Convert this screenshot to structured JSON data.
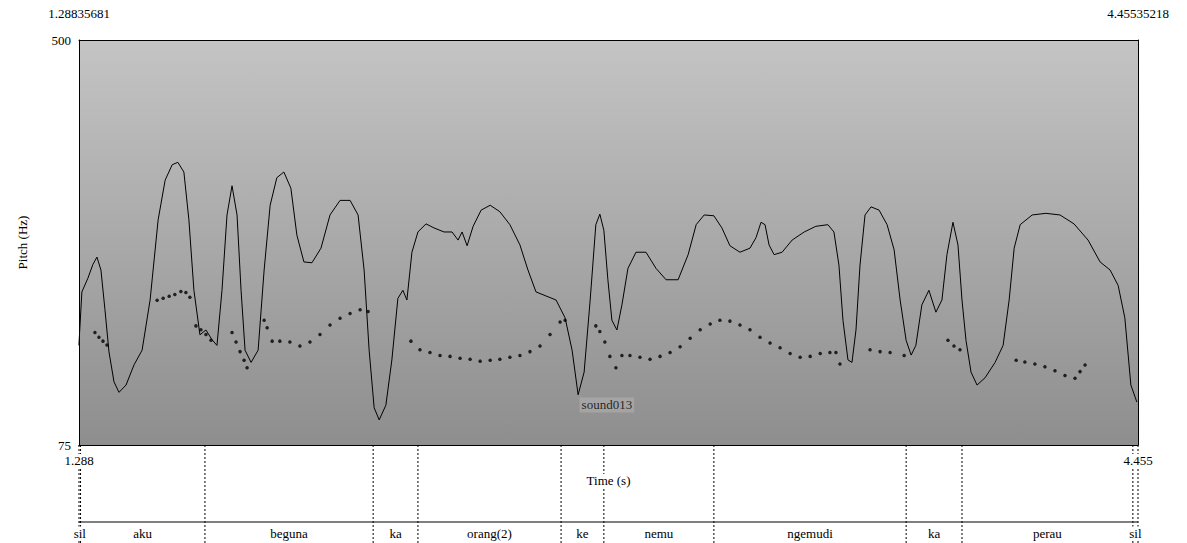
{
  "chart_data": {
    "type": "scatter",
    "xlabel": "Time (s)",
    "ylabel": "Pitch (Hz)",
    "xlim": [
      1.28835681,
      4.45535218
    ],
    "xticks": [
      {
        "value": 1.28835681,
        "label": "1.288"
      },
      {
        "value": 4.45535218,
        "label": "4.455"
      }
    ],
    "x2ticks": [
      1.28835681,
      4.45535218
    ],
    "ylim": [
      75,
      500
    ],
    "yticks": [
      75,
      500
    ],
    "y2lim": [
      50,
      100
    ],
    "y2ticks": [],
    "grid": false,
    "series": [
      {
        "type": "scatter",
        "marker": "circle",
        "color": "#000000",
        "x": [
          1.336,
          1.348,
          1.36,
          1.372,
          1.522,
          1.54,
          1.558,
          1.575,
          1.593,
          1.608,
          1.62,
          1.638,
          1.653,
          1.668,
          1.683,
          1.746,
          1.758,
          1.77,
          1.782,
          1.791,
          1.842,
          1.851,
          1.866,
          1.889,
          1.919,
          1.949,
          1.979,
          2.009,
          2.039,
          2.069,
          2.099,
          2.129,
          2.153,
          2.281,
          2.308,
          2.338,
          2.368,
          2.398,
          2.428,
          2.458,
          2.488,
          2.518,
          2.547,
          2.577,
          2.607,
          2.637,
          2.667,
          2.697,
          2.727,
          2.742,
          2.834,
          2.846,
          2.861,
          2.876,
          2.894,
          2.912,
          2.936,
          2.966,
          2.996,
          3.026,
          3.056,
          3.086,
          3.116,
          3.146,
          3.176,
          3.205,
          3.235,
          3.265,
          3.295,
          3.325,
          3.355,
          3.385,
          3.415,
          3.445,
          3.475,
          3.505,
          3.534,
          3.552,
          3.564,
          3.654,
          3.684,
          3.714,
          3.756,
          3.887,
          3.905,
          3.923,
          4.091,
          4.117,
          4.147,
          4.177,
          4.207,
          4.237,
          4.267,
          4.282,
          4.297
        ],
        "values": [
          193,
          188,
          184,
          180,
          227,
          229,
          231,
          233,
          236,
          235,
          230,
          200,
          196,
          191,
          185,
          193,
          183,
          173,
          164,
          156,
          206,
          198,
          184,
          184,
          183,
          179,
          183,
          191,
          201,
          208,
          213,
          217,
          215,
          184,
          175,
          172,
          169,
          168,
          166,
          165,
          163,
          164,
          165,
          167,
          169,
          173,
          179,
          191,
          204,
          206,
          200,
          194,
          183,
          168,
          156,
          169,
          169,
          167,
          165,
          168,
          172,
          178,
          187,
          196,
          202,
          206,
          205,
          201,
          196,
          188,
          182,
          177,
          171,
          167,
          168,
          171,
          172,
          172,
          160,
          175,
          173,
          172,
          169,
          185,
          179,
          175,
          164,
          162,
          160,
          157,
          153,
          148,
          145,
          152,
          159
        ]
      },
      {
        "type": "line",
        "axis": "y2",
        "color": "#000000",
        "line_style": "solid",
        "x": [
          1.288,
          1.297,
          1.315,
          1.33,
          1.342,
          1.354,
          1.366,
          1.378,
          1.393,
          1.408,
          1.429,
          1.453,
          1.477,
          1.501,
          1.525,
          1.546,
          1.567,
          1.584,
          1.602,
          1.617,
          1.632,
          1.65,
          1.668,
          1.686,
          1.701,
          1.716,
          1.731,
          1.746,
          1.761,
          1.773,
          1.785,
          1.803,
          1.824,
          1.842,
          1.86,
          1.88,
          1.901,
          1.922,
          1.94,
          1.961,
          1.985,
          2.012,
          2.039,
          2.069,
          2.099,
          2.123,
          2.141,
          2.156,
          2.171,
          2.186,
          2.206,
          2.224,
          2.242,
          2.257,
          2.269,
          2.284,
          2.302,
          2.326,
          2.35,
          2.38,
          2.404,
          2.422,
          2.434,
          2.449,
          2.467,
          2.491,
          2.518,
          2.547,
          2.577,
          2.607,
          2.631,
          2.655,
          2.685,
          2.715,
          2.742,
          2.763,
          2.781,
          2.799,
          2.817,
          2.834,
          2.846,
          2.858,
          2.87,
          2.882,
          2.897,
          2.912,
          2.93,
          2.954,
          2.984,
          3.014,
          3.044,
          3.08,
          3.11,
          3.134,
          3.158,
          3.187,
          3.211,
          3.235,
          3.265,
          3.295,
          3.313,
          3.328,
          3.34,
          3.352,
          3.367,
          3.391,
          3.421,
          3.457,
          3.492,
          3.528,
          3.546,
          3.561,
          3.573,
          3.588,
          3.6,
          3.612,
          3.624,
          3.639,
          3.657,
          3.681,
          3.705,
          3.726,
          3.744,
          3.762,
          3.777,
          3.791,
          3.809,
          3.83,
          3.851,
          3.869,
          3.884,
          3.902,
          3.917,
          3.929,
          3.941,
          3.956,
          3.974,
          3.998,
          4.028,
          4.052,
          4.07,
          4.085,
          4.103,
          4.139,
          4.18,
          4.222,
          4.264,
          4.306,
          4.342,
          4.372,
          4.396,
          4.416,
          4.434,
          4.452
        ],
        "values": [
          62.3,
          68.9,
          70.6,
          72.3,
          73.2,
          71.6,
          66.7,
          61.5,
          57.8,
          56.5,
          57.4,
          59.9,
          61.7,
          67.9,
          77.8,
          82.7,
          84.6,
          84.9,
          83.7,
          77.8,
          69.1,
          63.6,
          64.2,
          63.0,
          62.3,
          69.1,
          78.4,
          82.0,
          78.4,
          69.1,
          61.7,
          60.2,
          61.7,
          71.6,
          79.6,
          83.0,
          83.7,
          81.7,
          75.9,
          72.6,
          72.5,
          74.3,
          78.4,
          80.2,
          80.2,
          78.4,
          71.6,
          61.7,
          54.6,
          53.1,
          54.9,
          60.5,
          68.1,
          69.1,
          67.9,
          73.8,
          76.3,
          77.3,
          76.8,
          76.3,
          76.3,
          75.3,
          76.3,
          74.6,
          77.0,
          79.0,
          79.6,
          78.8,
          77.2,
          74.7,
          71.6,
          68.9,
          68.4,
          67.9,
          65.7,
          61.7,
          56.2,
          59.0,
          67.9,
          77.2,
          78.5,
          76.5,
          70.4,
          65.4,
          64.2,
          67.3,
          71.8,
          73.8,
          73.8,
          71.8,
          70.4,
          70.4,
          73.5,
          77.2,
          78.4,
          78.3,
          76.8,
          74.6,
          73.8,
          74.3,
          75.6,
          77.5,
          77.2,
          74.7,
          73.5,
          73.8,
          75.3,
          76.3,
          77.0,
          77.2,
          76.3,
          72.2,
          65.4,
          60.5,
          60.2,
          64.2,
          72.2,
          78.4,
          79.4,
          79.0,
          77.2,
          74.1,
          67.9,
          62.9,
          61.1,
          62.3,
          67.3,
          69.1,
          66.4,
          67.9,
          73.5,
          77.5,
          74.7,
          67.9,
          62.9,
          59.0,
          57.4,
          58.3,
          60.2,
          62.3,
          67.9,
          74.3,
          77.2,
          78.4,
          78.6,
          78.4,
          77.3,
          75.3,
          72.6,
          71.6,
          69.7,
          65.7,
          57.4,
          55.3
        ]
      }
    ],
    "annotations": [
      {
        "text": "sound013",
        "x": 2.867,
        "y": 117
      }
    ],
    "segments": {
      "bounds": [
        1.28835681,
        1.293,
        1.665,
        2.168,
        2.302,
        2.73,
        2.858,
        3.187,
        3.762,
        3.929,
        4.44,
        4.45535218
      ],
      "labels": [
        "sil",
        "aku",
        "beguna",
        "ka",
        "orang(2)",
        "ke",
        "nemu",
        "ngemudi",
        "ka",
        "perau",
        "sil"
      ]
    }
  }
}
